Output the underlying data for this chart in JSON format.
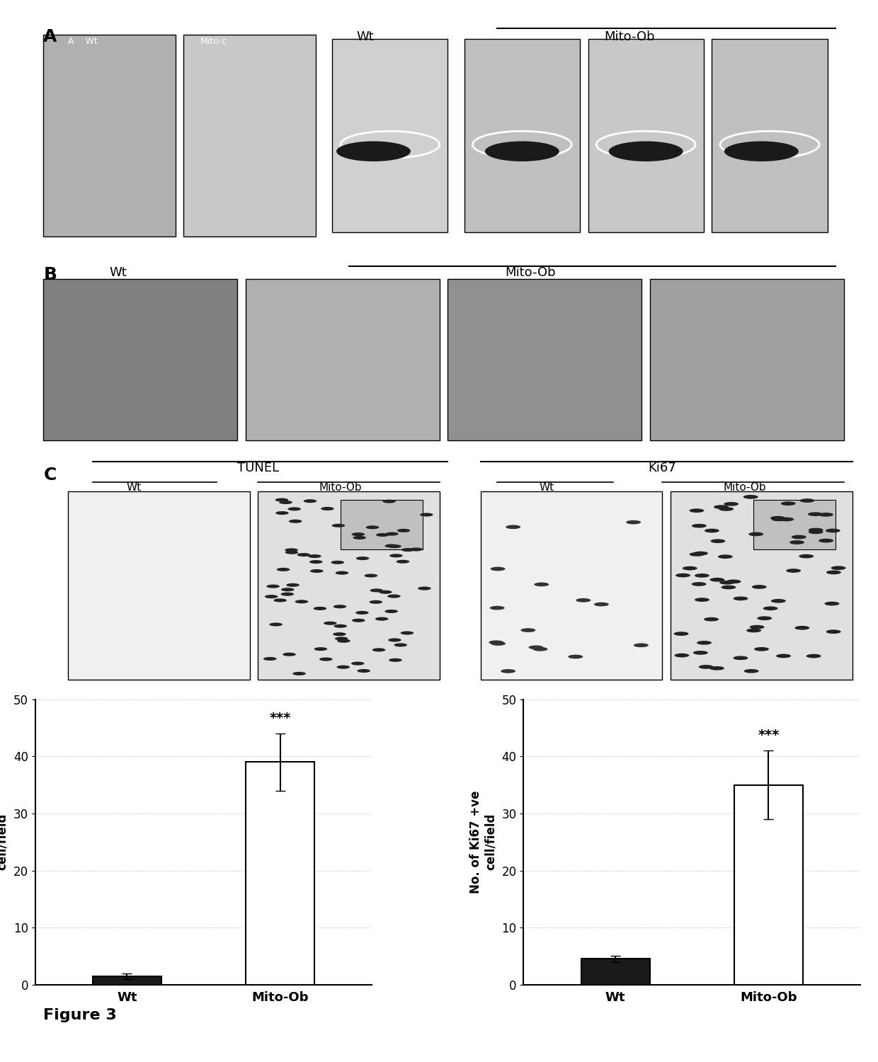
{
  "panel_label_fontsize": 18,
  "panel_label_fontweight": "bold",
  "figure_label": "Figure 3",
  "figure_label_fontsize": 16,
  "figure_label_fontweight": "bold",
  "background_color": "#ffffff",
  "bar_color_dark": "#1a1a1a",
  "bar_color_light": "#ffffff",
  "bar_edgecolor": "#000000",
  "bar_linewidth": 1.5,
  "tunel_bar_values": [
    1.5,
    39.0
  ],
  "tunel_bar_errors": [
    0.5,
    5.0
  ],
  "ki67_bar_values": [
    4.5,
    35.0
  ],
  "ki67_bar_errors": [
    0.5,
    6.0
  ],
  "tunel_ylabel": "No. of TUNEL +ve\ncell/field",
  "ki67_ylabel": "No. of Ki67 +ve\ncell/field",
  "xlabel_wt": "Wt",
  "xlabel_mitoob": "Mito-Ob",
  "ylim": [
    0,
    50
  ],
  "yticks": [
    0,
    10,
    20,
    30,
    40,
    50
  ],
  "significance": "***",
  "axis_fontsize": 13,
  "tick_fontsize": 12,
  "ylabel_fontsize": 12,
  "bar_width": 0.45,
  "panel_A_label": "A",
  "panel_B_label": "B",
  "panel_C_label": "C",
  "panel_A_text_wt": "Wt",
  "panel_A_text_mitoob": "Mito-Ob",
  "panel_B_text_wt": "Wt",
  "panel_B_text_mitoob": "Mito-Ob",
  "panel_C_text_tunel": "TUNEL",
  "panel_C_text_ki67": "Ki67",
  "panel_C_text_wt1": "Wt",
  "panel_C_text_mitoob1": "Mito-Ob",
  "panel_C_text_wt2": "Wt",
  "panel_C_text_mitoob2": "Mito-Ob",
  "line_color": "#000000",
  "grid_color": "#cccccc",
  "grid_linestyle": "--",
  "grid_linewidth": 0.5,
  "dpi": 100
}
